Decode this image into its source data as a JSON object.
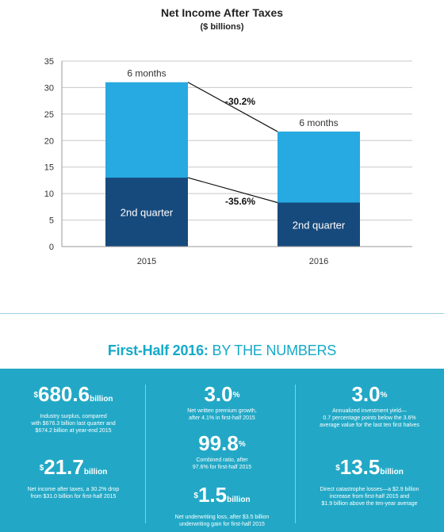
{
  "chart_data": {
    "type": "bar",
    "title": "Net Income After Taxes",
    "subtitle": "($ billions)",
    "categories": [
      "2015",
      "2016"
    ],
    "series": [
      {
        "name": "2nd quarter",
        "values": [
          13.0,
          8.3
        ],
        "color": "#174a7c"
      },
      {
        "name": "6 months",
        "values": [
          31.0,
          21.7
        ],
        "color": "#27a9e1"
      }
    ],
    "bar_labels": {
      "top": "6 months",
      "bottom": "2nd quarter"
    },
    "annotations": {
      "six_month_change": "-30.2%",
      "quarter_change": "-35.6%"
    },
    "ylim": [
      0,
      35
    ],
    "yticks": [
      "0",
      "5",
      "10",
      "15",
      "20",
      "25",
      "30",
      "35"
    ],
    "grid": true
  },
  "numbers": {
    "headline_bold": "First-Half 2016:",
    "headline_rest": "BY THE NUMBERS",
    "stats": [
      {
        "prefix": "$",
        "value": "680.6",
        "suffix": "billion",
        "desc": [
          "Industry surplus, compared",
          "with $676.3 billion last quarter and",
          "$674.2 billion at year-end 2015"
        ]
      },
      {
        "prefix": "$",
        "value": "21.7",
        "suffix": "billion",
        "desc": [
          "Net income after taxes, a 30.2% drop",
          "from $31.0 billion for first-half 2015"
        ]
      },
      {
        "prefix": "",
        "value": "3.0",
        "suffix": "%",
        "desc": [
          "Net written premium growth,",
          "after 4.1% in first-half 2015"
        ]
      },
      {
        "prefix": "",
        "value": "99.8",
        "suffix": "%",
        "desc": [
          "Combined ratio, after",
          "97.6% for first-half 2015"
        ]
      },
      {
        "prefix": "$",
        "value": "1.5",
        "suffix": "billion",
        "desc": [
          "Net underwriting loss, after $3.5 billion",
          "underwriting gain for first-half 2015"
        ]
      },
      {
        "prefix": "",
        "value": "3.0",
        "suffix": "%",
        "desc": [
          "Annualized investment yield—",
          "0.7 percentage points below the 3.6%",
          "average value for the last ten first halves"
        ]
      },
      {
        "prefix": "$",
        "value": "13.5",
        "suffix": "billion",
        "desc": [
          "Direct catastrophe losses—a $2.9 billion",
          "increase from first-half 2015 and",
          "$1.9 billion above the ten-year average"
        ]
      }
    ]
  }
}
